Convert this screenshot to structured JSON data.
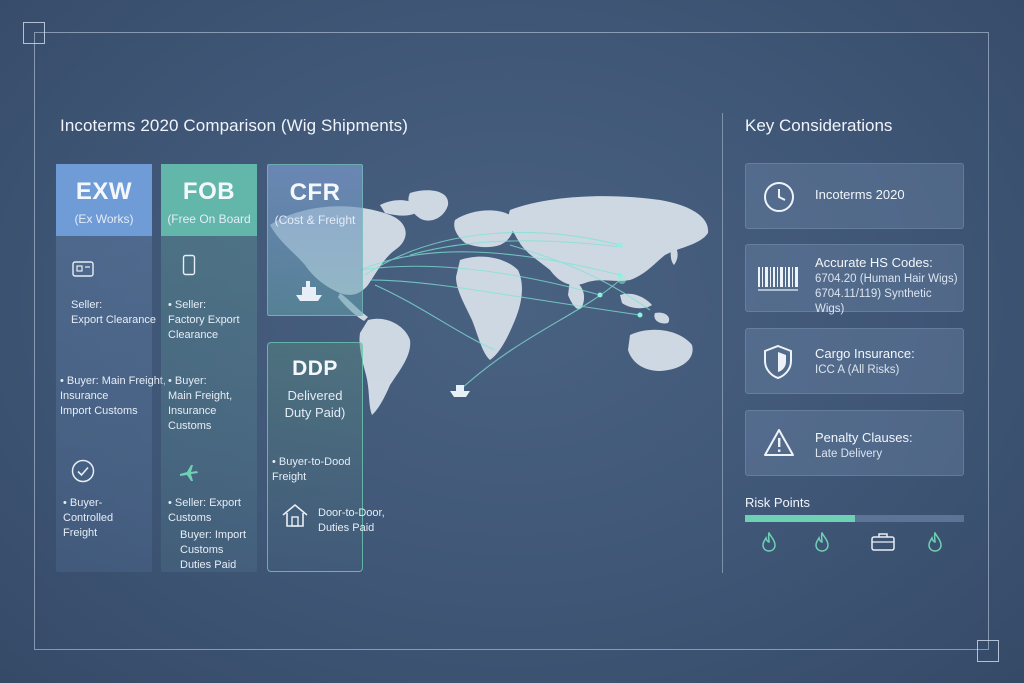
{
  "title": "Incoterms 2020 Comparison (Wig Shipments)",
  "columns": {
    "exw": {
      "code": "EXW",
      "sub": "(Ex Works)",
      "seller": "Seller:\nExport Clearance",
      "buyer": "Buyer: Main Freight,\nInsurance\nImport Customs",
      "controlled": "Buyer-\nControlled\nFreight"
    },
    "fob": {
      "code": "FOB",
      "sub": "(Free On Board",
      "seller": "Seller:\nFactory Export\nClearance",
      "buyer": "Buyer:\nMain Freight,\nInsurance\nCustoms",
      "seller2": "Seller: Export\nCustoms",
      "buyer2": "Buyer: Import\nCustoms\nDuties Paid"
    },
    "cfr": {
      "code": "CFR",
      "sub": "(Cost & Freight"
    },
    "ddp": {
      "code": "DDP",
      "sub": "Delivered\nDuty Paid)",
      "b2d": "Buyer-to-Dood\nFreight",
      "d2d": "Door-to-Door,\nDuties Paid"
    }
  },
  "key": {
    "title": "Key Considerations",
    "cards": [
      {
        "icon": "clock-icon",
        "heading": "Incoterms 2020"
      },
      {
        "icon": "barcode-icon",
        "heading": "Accurate HS Codes:",
        "lines": [
          "6704.20 (Human Hair Wigs)",
          "6704.11/119) Synthetic Wigs)"
        ]
      },
      {
        "icon": "shield-icon",
        "heading": "Cargo Insurance:",
        "lines": [
          "ICC A (All Risks)"
        ]
      },
      {
        "icon": "warning-icon",
        "heading": "Penalty Clauses:",
        "lines": [
          "Late Delivery"
        ]
      }
    ],
    "risk": {
      "label": "Risk Points",
      "level": 0.5
    }
  },
  "colors": {
    "exw": "#6f9bd6",
    "fob": "#63b7aa",
    "accent": "#6fd0b6"
  }
}
